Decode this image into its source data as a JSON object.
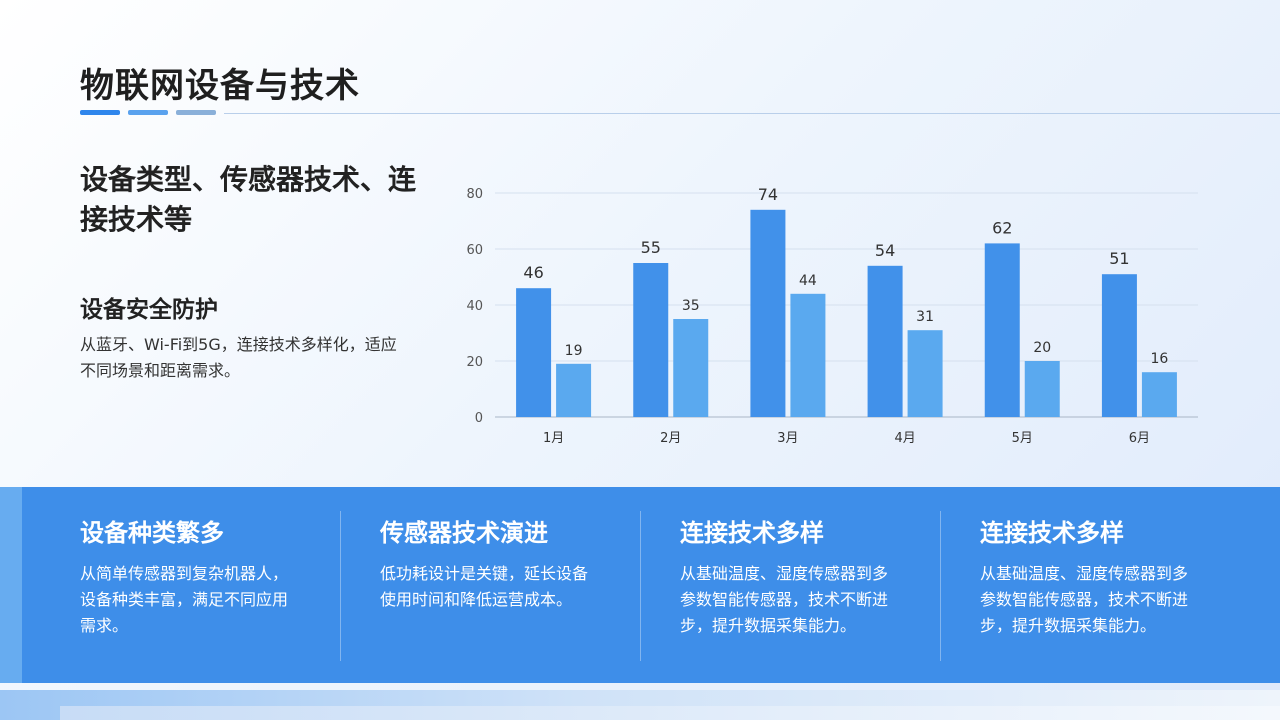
{
  "header": {
    "title": "物联网设备与技术"
  },
  "left": {
    "subtitle": "设备类型、传感器技术、连接技术等",
    "section_heading": "设备安全防护",
    "section_text": "从蓝牙、Wi-Fi到5G，连接技术多样化，适应不同场景和距离需求。"
  },
  "chart_data": {
    "type": "bar",
    "categories": [
      "1月",
      "2月",
      "3月",
      "4月",
      "5月",
      "6月"
    ],
    "series": [
      {
        "values": [
          46,
          55,
          74,
          54,
          62,
          51
        ],
        "color": "#4191ea"
      },
      {
        "values": [
          19,
          35,
          44,
          31,
          20,
          16
        ],
        "color": "#5aa9ef"
      }
    ],
    "ylim": [
      0,
      80
    ],
    "yticks": [
      0,
      20,
      40,
      60,
      80
    ],
    "grid": true,
    "title": "",
    "xlabel": "",
    "ylabel": ""
  },
  "cards": [
    {
      "title": "设备种类繁多",
      "text": "从简单传感器到复杂机器人，设备种类丰富，满足不同应用需求。"
    },
    {
      "title": "传感器技术演进",
      "text": "低功耗设计是关键，延长设备使用时间和降低运营成本。"
    },
    {
      "title": "连接技术多样",
      "text": "从基础温度、湿度传感器到多参数智能传感器，技术不断进步，提升数据采集能力。"
    },
    {
      "title": "连接技术多样",
      "text": "从基础温度、湿度传感器到多参数智能传感器，技术不断进步，提升数据采集能力。"
    }
  ],
  "colors": {
    "band": "#3e8ee9",
    "accent": "#2f86ec"
  }
}
